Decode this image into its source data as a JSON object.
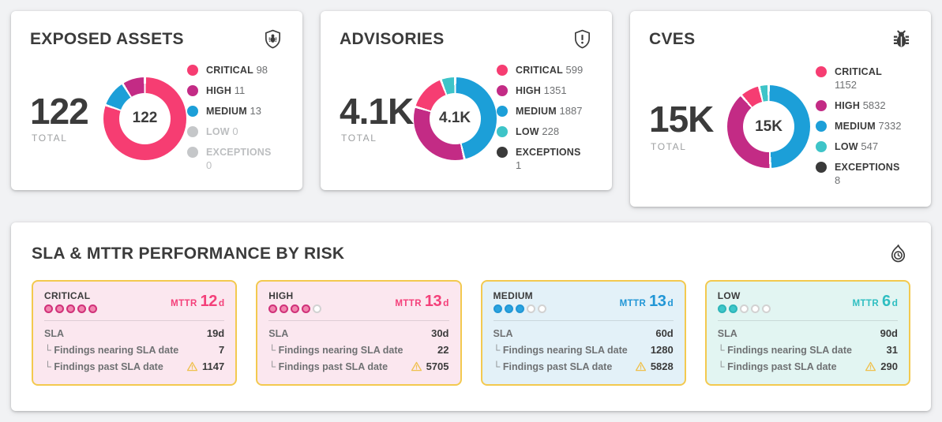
{
  "colors": {
    "critical": "#F63D72",
    "high": "#C32B85",
    "medium": "#1C9FD8",
    "low": "#3EC4C8",
    "exceptions": "#3A3A3A",
    "disabled": "#C5C7C9",
    "panel_border": "#F3C94F",
    "warning": "#EFC14F",
    "panel_pink_bg": "#FBE7EF",
    "panel_blue_bg": "#E3F1F8",
    "panel_teal_bg": "#E2F5F2",
    "mttr_pink": "#F4407A",
    "mttr_blue": "#2196D6",
    "mttr_teal": "#2EBEC1"
  },
  "summary_cards": [
    {
      "title": "EXPOSED ASSETS",
      "icon": "shield-bug-icon",
      "total": "122",
      "total_label": "TOTAL"
    },
    {
      "title": "ADVISORIES",
      "icon": "shield-alert-icon",
      "total": "4.1K",
      "total_label": "TOTAL"
    },
    {
      "title": "CVES",
      "icon": "bug-icon",
      "total": "15K",
      "total_label": "TOTAL"
    }
  ],
  "chart_data": [
    {
      "type": "donut",
      "title": "EXPOSED ASSETS",
      "center_label": "122",
      "total": 122,
      "legend_position": "right",
      "segments": [
        {
          "label": "CRITICAL",
          "value": 98
        },
        {
          "label": "HIGH",
          "value": 11
        },
        {
          "label": "MEDIUM",
          "value": 13
        },
        {
          "label": "LOW",
          "value": 0
        },
        {
          "label": "EXCEPTIONS",
          "value": 0
        }
      ]
    },
    {
      "type": "donut",
      "title": "ADVISORIES",
      "center_label": "4.1K",
      "total": 4066,
      "legend_position": "right",
      "segments": [
        {
          "label": "CRITICAL",
          "value": 599
        },
        {
          "label": "HIGH",
          "value": 1351
        },
        {
          "label": "MEDIUM",
          "value": 1887
        },
        {
          "label": "LOW",
          "value": 228
        },
        {
          "label": "EXCEPTIONS",
          "value": 1
        }
      ]
    },
    {
      "type": "donut",
      "title": "CVES",
      "center_label": "15K",
      "total": 14871,
      "legend_position": "right",
      "segments": [
        {
          "label": "CRITICAL",
          "value": 1152
        },
        {
          "label": "HIGH",
          "value": 5832
        },
        {
          "label": "MEDIUM",
          "value": 7332
        },
        {
          "label": "LOW",
          "value": 547
        },
        {
          "label": "EXCEPTIONS",
          "value": 8
        }
      ]
    }
  ],
  "sla_card": {
    "title": "SLA & MTTR PERFORMANCE BY RISK",
    "icon": "flame-clock-icon",
    "warning_icon": "warning-icon",
    "mttr_label": "MTTR",
    "sla_label": "SLA",
    "nearing_label": "Findings nearing SLA date",
    "past_label": "Findings past SLA date",
    "panels": [
      {
        "severity": "CRITICAL",
        "score_filled": 5,
        "score_total": 5,
        "mttr_value": "12",
        "mttr_unit": "d",
        "sla_value": "19d",
        "nearing_value": "7",
        "past_value": "1147"
      },
      {
        "severity": "HIGH",
        "score_filled": 4,
        "score_total": 5,
        "mttr_value": "13",
        "mttr_unit": "d",
        "sla_value": "30d",
        "nearing_value": "22",
        "past_value": "5705"
      },
      {
        "severity": "MEDIUM",
        "score_filled": 3,
        "score_total": 5,
        "mttr_value": "13",
        "mttr_unit": "d",
        "sla_value": "60d",
        "nearing_value": "1280",
        "past_value": "5828"
      },
      {
        "severity": "LOW",
        "score_filled": 2,
        "score_total": 5,
        "mttr_value": "6",
        "mttr_unit": "d",
        "sla_value": "90d",
        "nearing_value": "31",
        "past_value": "290"
      }
    ]
  }
}
